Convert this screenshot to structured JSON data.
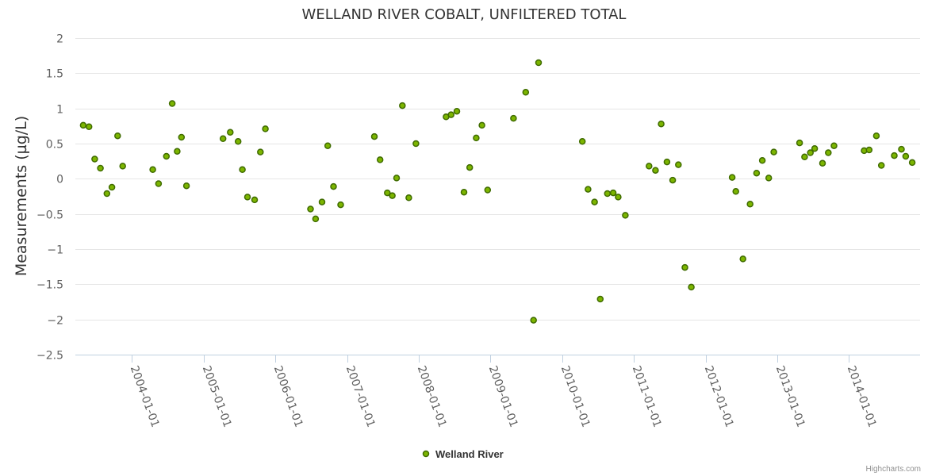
{
  "colors": {
    "point_fill": "#7cb500",
    "point_stroke": "#3f6b00",
    "grid": "#e6e6e6",
    "axis": "#c0d0e0"
  },
  "credit": "Highcharts.com",
  "chart_data": {
    "type": "scatter",
    "title": "WELLAND RIVER COBALT, UNFILTERED TOTAL",
    "xlabel": "",
    "ylabel": "Measurements (µg/L)",
    "ylim": [
      -2.5,
      2
    ],
    "yticks": [
      2,
      1.5,
      1,
      0.5,
      0,
      -0.5,
      -1,
      -1.5,
      -2,
      -2.5
    ],
    "ytick_labels": [
      "2",
      "1.5",
      "1",
      "0.5",
      "0",
      "−0.5",
      "−1",
      "−1.5",
      "−2",
      "−2.5"
    ],
    "xlim": [
      2003.21,
      2014.99
    ],
    "xticks": [
      2004,
      2005,
      2006,
      2007,
      2008,
      2009,
      2010,
      2011,
      2012,
      2013,
      2014
    ],
    "xtick_labels": [
      "2004-01-01",
      "2005-01-01",
      "2006-01-01",
      "2007-01-01",
      "2008-01-01",
      "2009-01-01",
      "2010-01-01",
      "2011-01-01",
      "2012-01-01",
      "2013-01-01",
      "2014-01-01"
    ],
    "legend": "bottom-center",
    "series": [
      {
        "name": "Welland River",
        "points": [
          [
            2003.32,
            0.76
          ],
          [
            2003.4,
            0.74
          ],
          [
            2003.48,
            0.28
          ],
          [
            2003.56,
            0.15
          ],
          [
            2003.65,
            -0.21
          ],
          [
            2003.72,
            -0.12
          ],
          [
            2003.8,
            0.61
          ],
          [
            2003.87,
            0.18
          ],
          [
            2004.29,
            0.13
          ],
          [
            2004.37,
            -0.07
          ],
          [
            2004.48,
            0.32
          ],
          [
            2004.56,
            1.07
          ],
          [
            2004.63,
            0.39
          ],
          [
            2004.69,
            0.59
          ],
          [
            2004.76,
            -0.1
          ],
          [
            2005.27,
            0.57
          ],
          [
            2005.37,
            0.66
          ],
          [
            2005.48,
            0.53
          ],
          [
            2005.54,
            0.13
          ],
          [
            2005.61,
            -0.26
          ],
          [
            2005.71,
            -0.3
          ],
          [
            2005.79,
            0.38
          ],
          [
            2005.86,
            0.71
          ],
          [
            2006.49,
            -0.43
          ],
          [
            2006.56,
            -0.57
          ],
          [
            2006.65,
            -0.33
          ],
          [
            2006.73,
            0.47
          ],
          [
            2006.81,
            -0.11
          ],
          [
            2006.91,
            -0.37
          ],
          [
            2007.38,
            0.6
          ],
          [
            2007.46,
            0.27
          ],
          [
            2007.56,
            -0.2
          ],
          [
            2007.63,
            -0.24
          ],
          [
            2007.69,
            0.01
          ],
          [
            2007.77,
            1.04
          ],
          [
            2007.86,
            -0.27
          ],
          [
            2007.96,
            0.5
          ],
          [
            2008.38,
            0.88
          ],
          [
            2008.45,
            0.91
          ],
          [
            2008.53,
            0.96
          ],
          [
            2008.63,
            -0.19
          ],
          [
            2008.71,
            0.16
          ],
          [
            2008.8,
            0.58
          ],
          [
            2008.88,
            0.76
          ],
          [
            2008.96,
            -0.16
          ],
          [
            2009.32,
            0.86
          ],
          [
            2009.49,
            1.23
          ],
          [
            2009.6,
            -2.01
          ],
          [
            2009.67,
            1.65
          ],
          [
            2010.28,
            0.53
          ],
          [
            2010.36,
            -0.15
          ],
          [
            2010.45,
            -0.33
          ],
          [
            2010.53,
            -1.71
          ],
          [
            2010.63,
            -0.21
          ],
          [
            2010.71,
            -0.2
          ],
          [
            2010.78,
            -0.26
          ],
          [
            2010.88,
            -0.52
          ],
          [
            2011.21,
            0.18
          ],
          [
            2011.3,
            0.12
          ],
          [
            2011.38,
            0.78
          ],
          [
            2011.46,
            0.24
          ],
          [
            2011.54,
            -0.02
          ],
          [
            2011.62,
            0.2
          ],
          [
            2011.71,
            -1.26
          ],
          [
            2011.8,
            -1.54
          ],
          [
            2012.37,
            0.02
          ],
          [
            2012.42,
            -0.18
          ],
          [
            2012.52,
            -1.14
          ],
          [
            2012.62,
            -0.36
          ],
          [
            2012.71,
            0.08
          ],
          [
            2012.79,
            0.26
          ],
          [
            2012.88,
            0.01
          ],
          [
            2012.95,
            0.38
          ],
          [
            2013.31,
            0.51
          ],
          [
            2013.38,
            0.31
          ],
          [
            2013.46,
            0.37
          ],
          [
            2013.52,
            0.43
          ],
          [
            2013.63,
            0.22
          ],
          [
            2013.71,
            0.37
          ],
          [
            2013.79,
            0.47
          ],
          [
            2014.21,
            0.4
          ],
          [
            2014.28,
            0.41
          ],
          [
            2014.38,
            0.61
          ],
          [
            2014.45,
            0.19
          ],
          [
            2014.63,
            0.33
          ],
          [
            2014.73,
            0.42
          ],
          [
            2014.79,
            0.32
          ],
          [
            2014.88,
            0.23
          ]
        ]
      }
    ]
  }
}
